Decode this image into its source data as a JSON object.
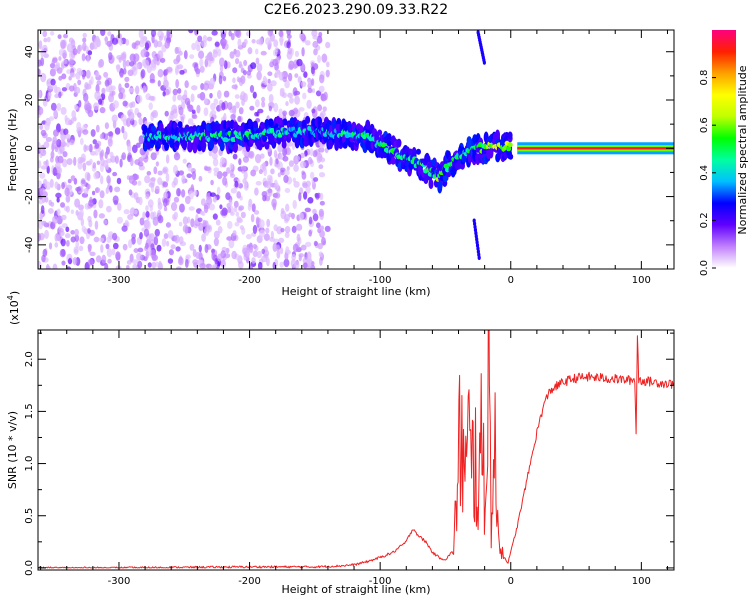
{
  "title": "C2E6.2023.290.09.33.R22",
  "chart_data": [
    {
      "type": "heatmap",
      "xlabel": "Height of straight line (km)",
      "ylabel": "Frequency (Hz)",
      "xlim": [
        -362,
        125
      ],
      "ylim": [
        -50,
        49
      ],
      "xticks": [
        -300,
        -200,
        -100,
        0,
        100
      ],
      "yticks": [
        -40,
        -20,
        0,
        20,
        40
      ],
      "grid": false,
      "colorbar": {
        "label": "Normalized spectral amplitude",
        "range": [
          0,
          1
        ],
        "ticks": [
          0.0,
          0.2,
          0.4,
          0.6,
          0.8
        ],
        "colors": [
          "#ffffff",
          "#c080ff",
          "#6000ff",
          "#0000ff",
          "#00c0ff",
          "#00ffa0",
          "#00ff00",
          "#c0ff00",
          "#ffff00",
          "#ffa000",
          "#ff2000",
          "#ff0080"
        ]
      },
      "signal_track": [
        {
          "x": -280,
          "y": 5,
          "amp": 0.45
        },
        {
          "x": -210,
          "y": 5,
          "amp": 0.55
        },
        {
          "x": -190,
          "y": 6,
          "amp": 0.5
        },
        {
          "x": -150,
          "y": 7,
          "amp": 0.45
        },
        {
          "x": -130,
          "y": 6,
          "amp": 0.5
        },
        {
          "x": -110,
          "y": 5,
          "amp": 0.55
        },
        {
          "x": -95,
          "y": 0,
          "amp": 0.55
        },
        {
          "x": -80,
          "y": -4,
          "amp": 0.6
        },
        {
          "x": -65,
          "y": -8,
          "amp": 0.6
        },
        {
          "x": -55,
          "y": -12,
          "amp": 0.65
        },
        {
          "x": -45,
          "y": -6,
          "amp": 0.6
        },
        {
          "x": -35,
          "y": -2,
          "amp": 0.55
        },
        {
          "x": -25,
          "y": 0,
          "amp": 0.6
        },
        {
          "x": -10,
          "y": 1,
          "amp": 0.75
        },
        {
          "x": 0,
          "y": 1,
          "amp": 0.8
        },
        {
          "x": 20,
          "y": 0,
          "amp": 0.95
        },
        {
          "x": 60,
          "y": 0,
          "amp": 0.95
        },
        {
          "x": 100,
          "y": 0,
          "amp": 0.95
        },
        {
          "x": 125,
          "y": 0,
          "amp": 0.95
        }
      ]
    },
    {
      "type": "line",
      "xlabel": "Height of straight line (km)",
      "ylabel": "SNR (10 * v/v)",
      "yscale_label": "(x10",
      "yscale_exponent": "4",
      "yscale_close": ")",
      "xlim": [
        -362,
        125
      ],
      "ylim": [
        -0.02,
        2.28
      ],
      "xticks": [
        -300,
        -200,
        -100,
        0,
        100
      ],
      "yticks": [
        0.0,
        0.5,
        1.0,
        1.5,
        2.0
      ],
      "grid": false,
      "series": [
        {
          "color": "#ee2222",
          "points": [
            [
              -362,
              0.0
            ],
            [
              -300,
              0.0
            ],
            [
              -200,
              0.01
            ],
            [
              -150,
              0.01
            ],
            [
              -130,
              0.02
            ],
            [
              -120,
              0.03
            ],
            [
              -110,
              0.06
            ],
            [
              -100,
              0.1
            ],
            [
              -90,
              0.15
            ],
            [
              -80,
              0.25
            ],
            [
              -75,
              0.38
            ],
            [
              -70,
              0.3
            ],
            [
              -65,
              0.25
            ],
            [
              -60,
              0.15
            ],
            [
              -55,
              0.1
            ],
            [
              -50,
              0.08
            ],
            [
              -45,
              0.15
            ],
            [
              -42,
              0.5
            ],
            [
              -38,
              1.4
            ],
            [
              -35,
              0.8
            ],
            [
              -32,
              1.2
            ],
            [
              -30,
              0.9
            ],
            [
              -27,
              1.1
            ],
            [
              -25,
              0.7
            ],
            [
              -22,
              1.2
            ],
            [
              -19,
              0.8
            ],
            [
              -17,
              2.1
            ],
            [
              -15,
              0.6
            ],
            [
              -12,
              1.0
            ],
            [
              -10,
              0.4
            ],
            [
              -7,
              0.2
            ],
            [
              -5,
              0.1
            ],
            [
              -2,
              0.05
            ],
            [
              0,
              0.15
            ],
            [
              5,
              0.4
            ],
            [
              10,
              0.7
            ],
            [
              15,
              1.0
            ],
            [
              20,
              1.3
            ],
            [
              25,
              1.55
            ],
            [
              30,
              1.7
            ],
            [
              40,
              1.78
            ],
            [
              50,
              1.82
            ],
            [
              60,
              1.83
            ],
            [
              70,
              1.82
            ],
            [
              80,
              1.81
            ],
            [
              90,
              1.8
            ],
            [
              95,
              1.8
            ],
            [
              96,
              1.28
            ],
            [
              97,
              2.25
            ],
            [
              98,
              1.8
            ],
            [
              110,
              1.78
            ],
            [
              125,
              1.76
            ]
          ]
        }
      ]
    }
  ]
}
